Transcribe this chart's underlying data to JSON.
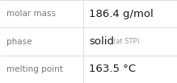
{
  "rows": [
    {
      "label": "molar mass",
      "value": "186.4 g/mol",
      "value_suffix": null
    },
    {
      "label": "phase",
      "value": "solid",
      "value_suffix": " (at STP)"
    },
    {
      "label": "melting point",
      "value": "163.5 °C",
      "value_suffix": null
    }
  ],
  "background_color": "#ffffff",
  "border_color": "#d8d8d8",
  "label_color": "#777777",
  "value_color": "#1a1a1a",
  "suffix_color": "#999999",
  "label_fontsize": 7.5,
  "value_fontsize": 9.5,
  "suffix_fontsize": 6.0,
  "col_split": 103,
  "fig_width": 2.19,
  "fig_height": 1.03,
  "dpi": 100
}
